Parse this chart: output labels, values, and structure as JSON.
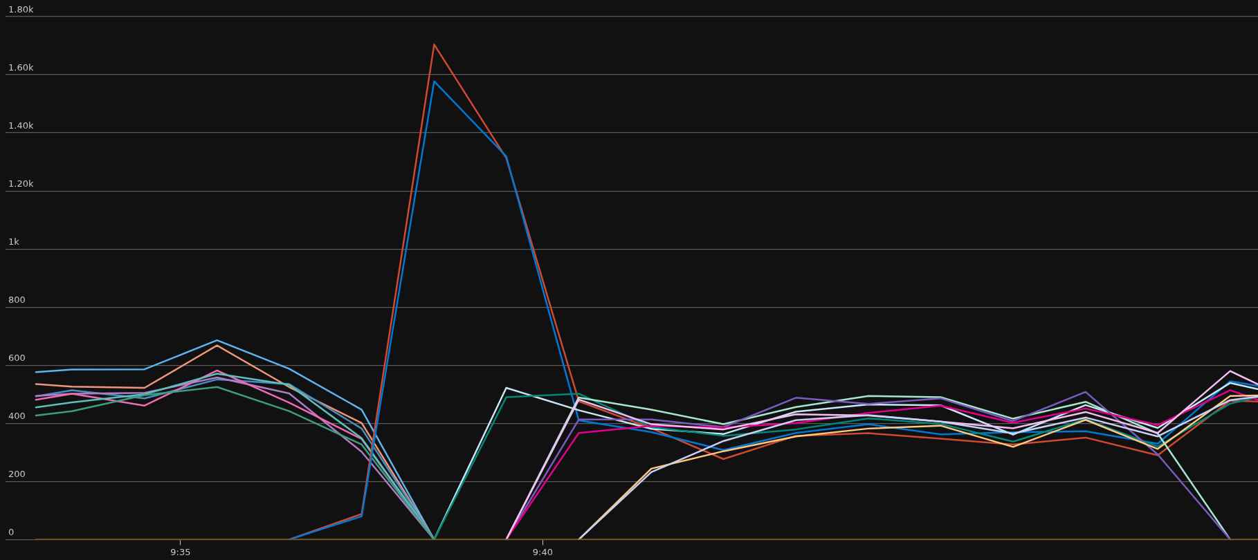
{
  "chart_data": {
    "type": "line",
    "x": [
      9.55,
      9.5583,
      9.575,
      9.5917,
      9.6083,
      9.625,
      9.6417,
      9.6583,
      9.675,
      9.6917,
      9.7083,
      9.725,
      9.7417,
      9.7583,
      9.775,
      9.7917,
      9.8083,
      9.825,
      9.8313
    ],
    "xlim": [
      9.543,
      9.8314
    ],
    "xticks": [
      {
        "value": 9.5833,
        "label": "9:35"
      },
      {
        "value": 9.6667,
        "label": "9:40"
      }
    ],
    "ylim": [
      0,
      1800
    ],
    "yticks": [
      0,
      200,
      400,
      600,
      800,
      {
        "value": 1000,
        "label": "1k"
      },
      {
        "value": 1200,
        "label": "1.20k"
      },
      {
        "value": 1400,
        "label": "1.40k"
      },
      {
        "value": 1600,
        "label": "1.60k"
      },
      {
        "value": 1800,
        "label": "1.80k"
      }
    ],
    "grid": "y",
    "legend": false,
    "marker": "none",
    "line_style": "solid",
    "series": [
      {
        "color": "#5eb4f0",
        "values": [
          576,
          585,
          586,
          686,
          588,
          447,
          0,
          null,
          null,
          null,
          null,
          null,
          null,
          null,
          null,
          null,
          null,
          null,
          null
        ]
      },
      {
        "color": "#f0967a",
        "values": [
          535,
          526,
          522,
          668,
          525,
          401,
          0,
          null,
          null,
          null,
          null,
          null,
          null,
          null,
          null,
          null,
          null,
          null,
          null
        ]
      },
      {
        "color": "#4a8fc4",
        "values": [
          493,
          514,
          486,
          551,
          535,
          382,
          0,
          null,
          null,
          null,
          null,
          null,
          null,
          null,
          null,
          null,
          null,
          null,
          null
        ]
      },
      {
        "color": "#b07cc6",
        "values": [
          494,
          502,
          505,
          558,
          503,
          302,
          0,
          null,
          null,
          null,
          null,
          null,
          null,
          null,
          null,
          null,
          null,
          null,
          null
        ]
      },
      {
        "color": "#f06cb4",
        "values": [
          481,
          502,
          461,
          582,
          471,
          346,
          0,
          null,
          null,
          null,
          null,
          null,
          null,
          null,
          null,
          null,
          null,
          null,
          null
        ]
      },
      {
        "color": "#5bc0be",
        "values": [
          455,
          472,
          500,
          571,
          533,
          349,
          0,
          null,
          null,
          null,
          null,
          null,
          null,
          null,
          null,
          null,
          null,
          null,
          null
        ]
      },
      {
        "color": "#3e9e82",
        "values": [
          427,
          442,
          497,
          525,
          442,
          327,
          0,
          null,
          null,
          null,
          null,
          null,
          null,
          null,
          null,
          null,
          null,
          null,
          null
        ]
      },
      {
        "color": "#d04a30",
        "values": [
          null,
          null,
          null,
          null,
          0,
          88,
          1704,
          1313,
          476,
          383,
          277,
          357,
          366,
          347,
          327,
          351,
          290,
          478,
          475
        ]
      },
      {
        "color": "#0078d4",
        "values": [
          null,
          null,
          null,
          null,
          0,
          80,
          1577,
          1319,
          410,
          370,
          308,
          367,
          397,
          362,
          369,
          373,
          330,
          545,
          529
        ]
      },
      {
        "color": "#c8e6f8",
        "values": [
          null,
          null,
          null,
          null,
          null,
          null,
          0,
          522,
          445,
          381,
          363,
          440,
          465,
          462,
          361,
          463,
          384,
          539,
          518
        ]
      },
      {
        "color": "#00897b",
        "values": [
          null,
          null,
          null,
          null,
          null,
          null,
          0,
          490,
          502,
          387,
          357,
          379,
          417,
          398,
          337,
          414,
          320,
          468,
          490
        ]
      },
      {
        "color": "#a8e6cf",
        "values": [
          null,
          null,
          null,
          null,
          null,
          null,
          null,
          0,
          489,
          447,
          397,
          456,
          494,
          490,
          416,
          474,
          365,
          0,
          null
        ]
      },
      {
        "color": "#7a5cc0",
        "values": [
          null,
          null,
          null,
          null,
          null,
          null,
          null,
          0,
          413,
          413,
          387,
          488,
          467,
          486,
          408,
          508,
          293,
          0,
          null
        ]
      },
      {
        "color": "#e3008c",
        "values": [
          null,
          null,
          null,
          null,
          null,
          null,
          null,
          0,
          367,
          391,
          386,
          401,
          436,
          461,
          402,
          451,
          394,
          514,
          481
        ]
      },
      {
        "color": "#f4c0f4",
        "values": [
          null,
          null,
          null,
          null,
          null,
          null,
          null,
          0,
          482,
          397,
          379,
          431,
          427,
          406,
          383,
          439,
          367,
          580,
          535
        ]
      },
      {
        "color": "#ffc880",
        "values": [
          null,
          null,
          null,
          null,
          null,
          null,
          null,
          null,
          0,
          244,
          304,
          355,
          382,
          392,
          319,
          412,
          312,
          494,
          496
        ]
      },
      {
        "color": "#c8d0f4",
        "values": [
          null,
          null,
          null,
          null,
          null,
          null,
          null,
          null,
          0,
          232,
          339,
          411,
          428,
          406,
          365,
          420,
          355,
          480,
          492
        ]
      },
      {
        "color": "#8a5a00",
        "values": [
          0,
          0,
          0,
          0,
          0,
          0,
          0,
          0,
          0,
          0,
          0,
          0,
          0,
          0,
          0,
          0,
          0,
          0,
          0
        ]
      }
    ]
  }
}
